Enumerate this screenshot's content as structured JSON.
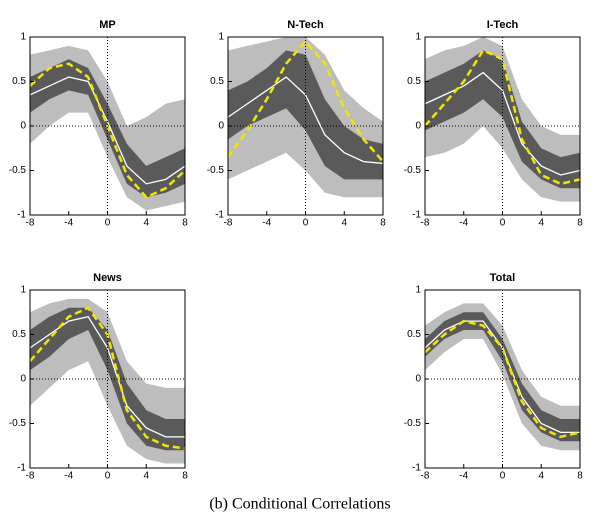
{
  "chart_data": [
    {
      "type": "band-line",
      "title": "MP",
      "x": [
        -8,
        -6,
        -4,
        -2,
        0,
        2,
        4,
        6,
        8
      ],
      "bands": [
        {
          "color": "#bdbdbd",
          "lower": [
            -0.2,
            0.0,
            0.15,
            0.15,
            -0.35,
            -0.8,
            -0.95,
            -0.9,
            -0.85
          ],
          "upper": [
            0.8,
            0.85,
            0.9,
            0.85,
            0.5,
            0.0,
            0.1,
            0.25,
            0.3
          ]
        },
        {
          "color": "#5a5a5a",
          "lower": [
            0.15,
            0.3,
            0.4,
            0.35,
            -0.15,
            -0.65,
            -0.8,
            -0.75,
            -0.65
          ],
          "upper": [
            0.55,
            0.65,
            0.75,
            0.65,
            0.25,
            -0.2,
            -0.45,
            -0.35,
            -0.25
          ]
        }
      ],
      "series": [
        {
          "color": "#ffffff",
          "dashed": false,
          "values": [
            0.35,
            0.45,
            0.55,
            0.5,
            0.05,
            -0.45,
            -0.65,
            -0.6,
            -0.45
          ]
        },
        {
          "color": "#f2e600",
          "dashed": true,
          "values": [
            0.45,
            0.65,
            0.7,
            0.55,
            0.0,
            -0.55,
            -0.8,
            -0.7,
            -0.5
          ]
        }
      ],
      "xlim": [
        -8,
        8
      ],
      "ylim": [
        -1,
        1
      ],
      "xticks": [
        -8,
        -4,
        0,
        4,
        8
      ],
      "yticks": [
        -1,
        -0.5,
        0,
        0.5,
        1
      ],
      "hline": 0,
      "vline": 0
    },
    {
      "type": "band-line",
      "title": "N-Tech",
      "x": [
        -8,
        -6,
        -4,
        -2,
        0,
        2,
        4,
        6,
        8
      ],
      "bands": [
        {
          "color": "#bdbdbd",
          "lower": [
            -0.6,
            -0.5,
            -0.4,
            -0.3,
            -0.5,
            -0.75,
            -0.8,
            -0.8,
            -0.8
          ],
          "upper": [
            0.85,
            0.9,
            0.95,
            1.0,
            1.0,
            0.8,
            0.4,
            0.2,
            0.05
          ]
        },
        {
          "color": "#5a5a5a",
          "lower": [
            -0.15,
            0.0,
            0.1,
            0.2,
            -0.05,
            -0.45,
            -0.6,
            -0.6,
            -0.6
          ],
          "upper": [
            0.4,
            0.5,
            0.65,
            0.85,
            0.8,
            0.3,
            0.0,
            -0.15,
            -0.2
          ]
        }
      ],
      "series": [
        {
          "color": "#ffffff",
          "dashed": false,
          "values": [
            0.1,
            0.25,
            0.4,
            0.55,
            0.35,
            -0.1,
            -0.3,
            -0.4,
            -0.42
          ]
        },
        {
          "color": "#f2e600",
          "dashed": true,
          "values": [
            -0.35,
            -0.05,
            0.3,
            0.7,
            0.95,
            0.7,
            0.2,
            -0.15,
            -0.4
          ]
        }
      ],
      "xlim": [
        -8,
        8
      ],
      "ylim": [
        -1,
        1
      ],
      "xticks": [
        -8,
        -4,
        0,
        4,
        8
      ],
      "yticks": [
        -1,
        -0.5,
        0,
        0.5,
        1
      ],
      "hline": 0,
      "vline": 0
    },
    {
      "type": "band-line",
      "title": "I-Tech",
      "x": [
        -8,
        -6,
        -4,
        -2,
        0,
        2,
        4,
        6,
        8
      ],
      "bands": [
        {
          "color": "#bdbdbd",
          "lower": [
            -0.35,
            -0.3,
            -0.2,
            0.0,
            -0.25,
            -0.6,
            -0.8,
            -0.85,
            -0.85
          ],
          "upper": [
            0.75,
            0.85,
            0.9,
            1.0,
            0.9,
            0.3,
            0.0,
            -0.1,
            -0.1
          ]
        },
        {
          "color": "#5a5a5a",
          "lower": [
            -0.05,
            0.05,
            0.15,
            0.3,
            0.1,
            -0.4,
            -0.6,
            -0.7,
            -0.7
          ],
          "upper": [
            0.5,
            0.6,
            0.7,
            0.85,
            0.75,
            0.05,
            -0.25,
            -0.35,
            -0.3
          ]
        }
      ],
      "series": [
        {
          "color": "#ffffff",
          "dashed": false,
          "values": [
            0.25,
            0.35,
            0.45,
            0.6,
            0.4,
            -0.2,
            -0.45,
            -0.55,
            -0.5
          ]
        },
        {
          "color": "#f2e600",
          "dashed": true,
          "values": [
            0.0,
            0.25,
            0.5,
            0.85,
            0.75,
            -0.15,
            -0.55,
            -0.65,
            -0.6
          ]
        }
      ],
      "xlim": [
        -8,
        8
      ],
      "ylim": [
        -1,
        1
      ],
      "xticks": [
        -8,
        -4,
        0,
        4,
        8
      ],
      "yticks": [
        -1,
        -0.5,
        0,
        0.5,
        1
      ],
      "hline": 0,
      "vline": 0
    },
    {
      "type": "band-line",
      "title": "News",
      "x": [
        -8,
        -6,
        -4,
        -2,
        0,
        2,
        4,
        6,
        8
      ],
      "bands": [
        {
          "color": "#bdbdbd",
          "lower": [
            -0.3,
            -0.1,
            0.1,
            0.2,
            -0.3,
            -0.75,
            -0.9,
            -0.95,
            -0.95
          ],
          "upper": [
            0.75,
            0.85,
            0.9,
            0.9,
            0.75,
            0.2,
            -0.05,
            -0.1,
            -0.1
          ]
        },
        {
          "color": "#5a5a5a",
          "lower": [
            0.1,
            0.25,
            0.45,
            0.55,
            0.1,
            -0.5,
            -0.75,
            -0.8,
            -0.8
          ],
          "upper": [
            0.55,
            0.7,
            0.8,
            0.8,
            0.55,
            -0.05,
            -0.35,
            -0.45,
            -0.45
          ]
        }
      ],
      "series": [
        {
          "color": "#ffffff",
          "dashed": false,
          "values": [
            0.35,
            0.5,
            0.65,
            0.7,
            0.35,
            -0.3,
            -0.55,
            -0.65,
            -0.65
          ]
        },
        {
          "color": "#f2e600",
          "dashed": true,
          "values": [
            0.2,
            0.45,
            0.7,
            0.8,
            0.5,
            -0.35,
            -0.65,
            -0.75,
            -0.78
          ]
        }
      ],
      "xlim": [
        -8,
        8
      ],
      "ylim": [
        -1,
        1
      ],
      "xticks": [
        -8,
        -4,
        0,
        4,
        8
      ],
      "yticks": [
        -1,
        -0.5,
        0,
        0.5,
        1
      ],
      "hline": 0,
      "vline": 0
    },
    {
      "type": "band-line",
      "title": "Total",
      "x": [
        -8,
        -6,
        -4,
        -2,
        0,
        2,
        4,
        6,
        8
      ],
      "bands": [
        {
          "color": "#bdbdbd",
          "lower": [
            0.1,
            0.3,
            0.45,
            0.45,
            0.05,
            -0.5,
            -0.75,
            -0.8,
            -0.8
          ],
          "upper": [
            0.6,
            0.75,
            0.85,
            0.85,
            0.6,
            0.1,
            -0.2,
            -0.3,
            -0.3
          ]
        },
        {
          "color": "#5a5a5a",
          "lower": [
            0.25,
            0.45,
            0.55,
            0.55,
            0.2,
            -0.35,
            -0.6,
            -0.7,
            -0.7
          ],
          "upper": [
            0.45,
            0.65,
            0.75,
            0.75,
            0.45,
            -0.05,
            -0.35,
            -0.45,
            -0.45
          ]
        }
      ],
      "series": [
        {
          "color": "#ffffff",
          "dashed": false,
          "values": [
            0.35,
            0.55,
            0.65,
            0.65,
            0.35,
            -0.2,
            -0.5,
            -0.6,
            -0.6
          ]
        },
        {
          "color": "#f2e600",
          "dashed": true,
          "values": [
            0.3,
            0.5,
            0.65,
            0.6,
            0.35,
            -0.25,
            -0.55,
            -0.65,
            -0.6
          ]
        }
      ],
      "xlim": [
        -8,
        8
      ],
      "ylim": [
        -1,
        1
      ],
      "xticks": [
        -8,
        -4,
        0,
        4,
        8
      ],
      "yticks": [
        -1,
        -0.5,
        0,
        0.5,
        1
      ],
      "hline": 0,
      "vline": 0
    }
  ],
  "caption": "(b) Conditional Correlations"
}
